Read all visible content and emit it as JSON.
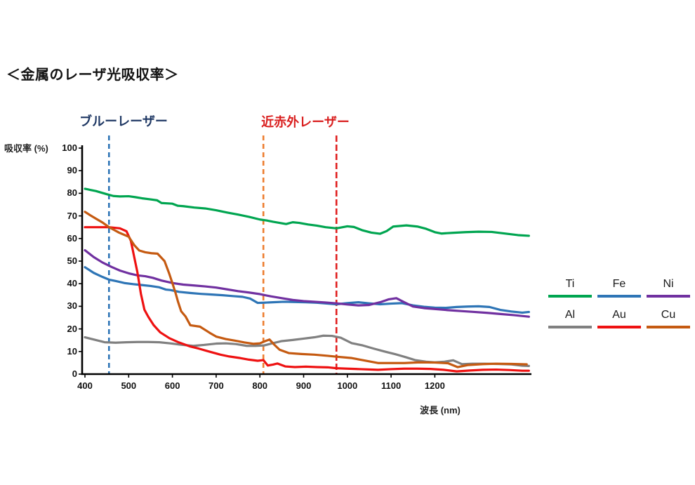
{
  "page": {
    "title": "＜金属のレーザ光吸収率＞"
  },
  "axis": {
    "y_label": "吸収率 (%)",
    "x_label": "波長 (nm)"
  },
  "annotations": {
    "blue_laser": {
      "label": "ブルーレーザー",
      "wavelength_nm": 455,
      "label_color": "#1F3864",
      "line_color": "#2E75B6"
    },
    "nir_laser": {
      "label": "近赤外レーザー",
      "wavelengths_nm": [
        808,
        975
      ],
      "label_color": "#D91E1E",
      "line_colors": [
        "#ED7D31",
        "#E02020"
      ]
    }
  },
  "legend": {
    "items": [
      {
        "label": "Ti",
        "color": "#00A550"
      },
      {
        "label": "Fe",
        "color": "#2E75B6"
      },
      {
        "label": "Ni",
        "color": "#7030A0"
      },
      {
        "label": "Al",
        "color": "#808080"
      },
      {
        "label": "Au",
        "color": "#EE1111"
      },
      {
        "label": "Cu",
        "color": "#C55A11"
      }
    ]
  },
  "chart_data": {
    "type": "line",
    "title": "＜金属のレーザ光吸収率＞",
    "xlabel": "波長 (nm)",
    "ylabel": "吸収率 (%)",
    "xlim": [
      400,
      1430
    ],
    "ylim": [
      0,
      100
    ],
    "x_ticks": [
      400,
      500,
      600,
      700,
      800,
      900,
      1000,
      1100,
      1200
    ],
    "y_ticks": [
      0,
      10,
      20,
      30,
      40,
      50,
      60,
      70,
      80,
      90,
      100
    ],
    "grid": false,
    "legend_position": "right",
    "vlines": [
      {
        "name": "blue-laser",
        "x": 455,
        "color": "#2E75B6",
        "dash": "7 5"
      },
      {
        "name": "nir-laser-808",
        "x": 808,
        "color": "#ED7D31",
        "dash": "7 5"
      },
      {
        "name": "nir-laser-975",
        "x": 975,
        "color": "#E02020",
        "dash": "9 4"
      }
    ],
    "series": [
      {
        "name": "Ti",
        "color": "#00A550",
        "x": [
          400,
          425,
          450,
          465,
          480,
          500,
          515,
          530,
          550,
          565,
          575,
          600,
          612,
          625,
          650,
          675,
          700,
          725,
          750,
          775,
          800,
          815,
          830,
          845,
          860,
          875,
          890,
          910,
          930,
          950,
          975,
          1000,
          1015,
          1035,
          1055,
          1075,
          1090,
          1105,
          1135,
          1160,
          1180,
          1200,
          1215,
          1240,
          1270,
          1300,
          1330,
          1360,
          1390,
          1415
        ],
        "values": [
          82,
          81,
          79.6,
          78.8,
          78.6,
          78.7,
          78.3,
          77.8,
          77.3,
          76.9,
          75.7,
          75.4,
          74.5,
          74.3,
          73.7,
          73.3,
          72.5,
          71.5,
          70.6,
          69.6,
          68.4,
          68,
          67.4,
          66.9,
          66.4,
          67.2,
          66.9,
          66.2,
          65.7,
          65,
          64.5,
          65.4,
          65.1,
          63.6,
          62.6,
          62.1,
          63.3,
          65.3,
          65.8,
          65.3,
          64.3,
          62.8,
          62.2,
          62.5,
          62.8,
          63,
          62.9,
          62.2,
          61.5,
          61.2
        ]
      },
      {
        "name": "Fe",
        "color": "#2E75B6",
        "x": [
          400,
          420,
          440,
          455,
          470,
          490,
          510,
          530,
          550,
          570,
          585,
          595,
          615,
          640,
          665,
          690,
          715,
          740,
          760,
          778,
          795,
          810,
          830,
          855,
          880,
          905,
          930,
          955,
          975,
          1000,
          1025,
          1050,
          1075,
          1100,
          1125,
          1150,
          1175,
          1200,
          1225,
          1250,
          1275,
          1300,
          1325,
          1350,
          1375,
          1400,
          1415
        ],
        "values": [
          47.3,
          44.8,
          43,
          41.8,
          41.2,
          40.3,
          39.8,
          39.4,
          39,
          38.4,
          37.4,
          37.2,
          36.4,
          35.9,
          35.5,
          35.2,
          34.9,
          34.5,
          34.2,
          33.4,
          31.5,
          31.6,
          31.8,
          32,
          31.9,
          31.8,
          31.6,
          31.2,
          30.9,
          31.4,
          31.8,
          31.3,
          30.9,
          31.2,
          31.4,
          30.4,
          29.8,
          29.4,
          29.3,
          29.7,
          29.9,
          30,
          29.7,
          28.4,
          27.7,
          27.2,
          27.5
        ]
      },
      {
        "name": "Ni",
        "color": "#7030A0",
        "x": [
          400,
          420,
          440,
          460,
          480,
          500,
          520,
          538,
          555,
          575,
          600,
          625,
          650,
          675,
          700,
          725,
          750,
          775,
          800,
          825,
          850,
          875,
          900,
          925,
          950,
          975,
          1000,
          1025,
          1050,
          1075,
          1095,
          1112,
          1130,
          1150,
          1175,
          1200,
          1230,
          1260,
          1290,
          1320,
          1350,
          1380,
          1415
        ],
        "values": [
          54.8,
          51.8,
          49.4,
          47.5,
          45.8,
          44.6,
          43.7,
          43.3,
          42.6,
          41.4,
          40.3,
          39.6,
          39.2,
          38.8,
          38.3,
          37.5,
          36.7,
          36.1,
          35.4,
          34.4,
          33.6,
          32.8,
          32.3,
          32,
          31.7,
          31.3,
          30.8,
          30.4,
          30.6,
          31.8,
          33.1,
          33.6,
          31.8,
          29.9,
          29.2,
          28.8,
          28.3,
          27.9,
          27.5,
          27.1,
          26.6,
          26.1,
          25.4
        ]
      },
      {
        "name": "Al",
        "color": "#808080",
        "x": [
          400,
          420,
          445,
          470,
          495,
          520,
          545,
          570,
          595,
          620,
          648,
          672,
          700,
          722,
          745,
          770,
          790,
          810,
          830,
          850,
          875,
          900,
          925,
          945,
          965,
          985,
          1010,
          1035,
          1060,
          1085,
          1110,
          1135,
          1155,
          1180,
          1200,
          1222,
          1242,
          1262,
          1285,
          1315,
          1345,
          1375,
          1400,
          1415
        ],
        "values": [
          16.3,
          15.3,
          14.1,
          13.9,
          14.1,
          14.2,
          14.2,
          14.1,
          13.6,
          13,
          12.5,
          12.9,
          13.5,
          13.6,
          13.3,
          12.5,
          12.5,
          12.7,
          13.7,
          14.6,
          15.1,
          15.7,
          16.3,
          17,
          16.9,
          16.1,
          13.7,
          12.7,
          11.3,
          10,
          8.8,
          7.4,
          6.2,
          5.5,
          5.2,
          5.5,
          6.1,
          4.4,
          4.6,
          4.6,
          4.5,
          4.3,
          3.7,
          3.6
        ]
      },
      {
        "name": "Au",
        "color": "#EE1111",
        "x": [
          400,
          430,
          455,
          480,
          495,
          505,
          513,
          520,
          528,
          536,
          545,
          557,
          572,
          593,
          615,
          641,
          660,
          680,
          710,
          730,
          755,
          775,
          795,
          808,
          818,
          830,
          840,
          858,
          880,
          905,
          930,
          955,
          975,
          1000,
          1030,
          1070,
          1100,
          1130,
          1160,
          1190,
          1220,
          1250,
          1280,
          1310,
          1340,
          1370,
          1400,
          1415
        ],
        "values": [
          65,
          65,
          65,
          64.5,
          63.2,
          59,
          51.5,
          45,
          35.5,
          28.5,
          25.3,
          21.7,
          18.5,
          15.9,
          14,
          12.2,
          11.3,
          10.2,
          8.6,
          7.8,
          7.1,
          6.4,
          5.9,
          6.2,
          3.8,
          4.2,
          4.7,
          3.4,
          3.1,
          3.3,
          3.1,
          3,
          2.6,
          2.4,
          2.2,
          1.9,
          2.2,
          2.4,
          2.4,
          2.3,
          1.9,
          1.2,
          1.6,
          1.9,
          2,
          1.8,
          1.5,
          1.5
        ]
      },
      {
        "name": "Cu",
        "color": "#C55A11",
        "x": [
          400,
          412,
          424,
          440,
          456,
          478,
          500,
          513,
          524,
          538,
          552,
          566,
          582,
          593,
          600,
          607,
          613,
          620,
          630,
          641,
          663,
          685,
          700,
          722,
          743,
          765,
          785,
          800,
          812,
          822,
          833,
          845,
          866,
          895,
          925,
          955,
          975,
          1010,
          1040,
          1070,
          1100,
          1130,
          1165,
          1200,
          1230,
          1252,
          1275,
          1310,
          1340,
          1375,
          1410
        ],
        "values": [
          71.8,
          70.3,
          68.9,
          67.1,
          64.9,
          62.6,
          60.8,
          57,
          54.7,
          53.9,
          53.5,
          53.3,
          50,
          44.3,
          40.2,
          36,
          31.9,
          27.8,
          25.5,
          21.6,
          21,
          18.3,
          16.6,
          15.5,
          14.8,
          14,
          13.4,
          13.6,
          14.6,
          15.3,
          13,
          10.8,
          9.3,
          8.9,
          8.6,
          8.1,
          7.7,
          7.1,
          6,
          4.9,
          4.9,
          4.9,
          5.2,
          5.1,
          4.8,
          3.1,
          4,
          4.4,
          4.6,
          4.5,
          4.3
        ]
      }
    ]
  }
}
